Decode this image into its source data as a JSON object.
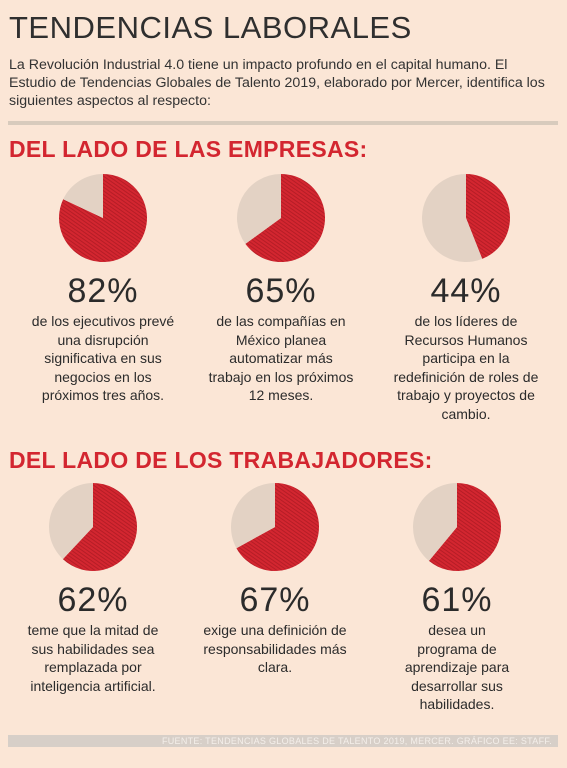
{
  "title": "TENDENCIAS LABORALES",
  "intro": "La Revolución Industrial 4.0 tiene un impacto profundo en el capital humano. El Estudio de Tendencias Globales de Talento 2019, elaborado por Mercer, identifica los siguientes aspectos al respecto:",
  "sections": [
    {
      "title": "DEL LADO DE LAS EMPRESAS:",
      "items": [
        {
          "pct": "82%",
          "desc": "de los ejecutivos prevé\nuna disrupción\nsignificativa en sus\nnegocios en los\npróximos tres años."
        },
        {
          "pct": "65%",
          "desc": "de las compañías en\nMéxico planea\nautomatizar más\ntrabajo en los próximos\n12 meses."
        },
        {
          "pct": "44%",
          "desc": "de los líderes de\nRecursos Humanos\nparticipa en la\nredefinición de roles de\ntrabajo  y proyectos  de\ncambio."
        }
      ]
    },
    {
      "title": "DEL LADO DE LOS TRABAJADORES:",
      "items": [
        {
          "pct": "62%",
          "desc": "teme que la mitad de\nsus habilidades sea\nremplazada por\ninteligencia artificial."
        },
        {
          "pct": "67%",
          "desc": "exige una definición de\nresponsabilidades más\nclara."
        },
        {
          "pct": "61%",
          "desc": "desea un\nprograma de\naprendizaje para\ndesarrollar sus\nhabilidades."
        }
      ]
    }
  ],
  "footer": "FUENTE: TENDENCIAS GLOBALES DE TALENTO 2019, MERCER. GRÁFICO EE: STAFF.",
  "colors": {
    "accent": "#d32630",
    "pie_rest": "#e3d2c4",
    "background": "#fbe6d6"
  },
  "chart_data": [
    {
      "type": "pie",
      "slices": [
        {
          "value": 82
        },
        {
          "value": 18
        }
      ]
    },
    {
      "type": "pie",
      "slices": [
        {
          "value": 65
        },
        {
          "value": 35
        }
      ]
    },
    {
      "type": "pie",
      "slices": [
        {
          "value": 44
        },
        {
          "value": 56
        }
      ]
    },
    {
      "type": "pie",
      "slices": [
        {
          "value": 62
        },
        {
          "value": 38
        }
      ]
    },
    {
      "type": "pie",
      "slices": [
        {
          "value": 67
        },
        {
          "value": 33
        }
      ]
    },
    {
      "type": "pie",
      "slices": [
        {
          "value": 61
        },
        {
          "value": 39
        }
      ]
    }
  ]
}
